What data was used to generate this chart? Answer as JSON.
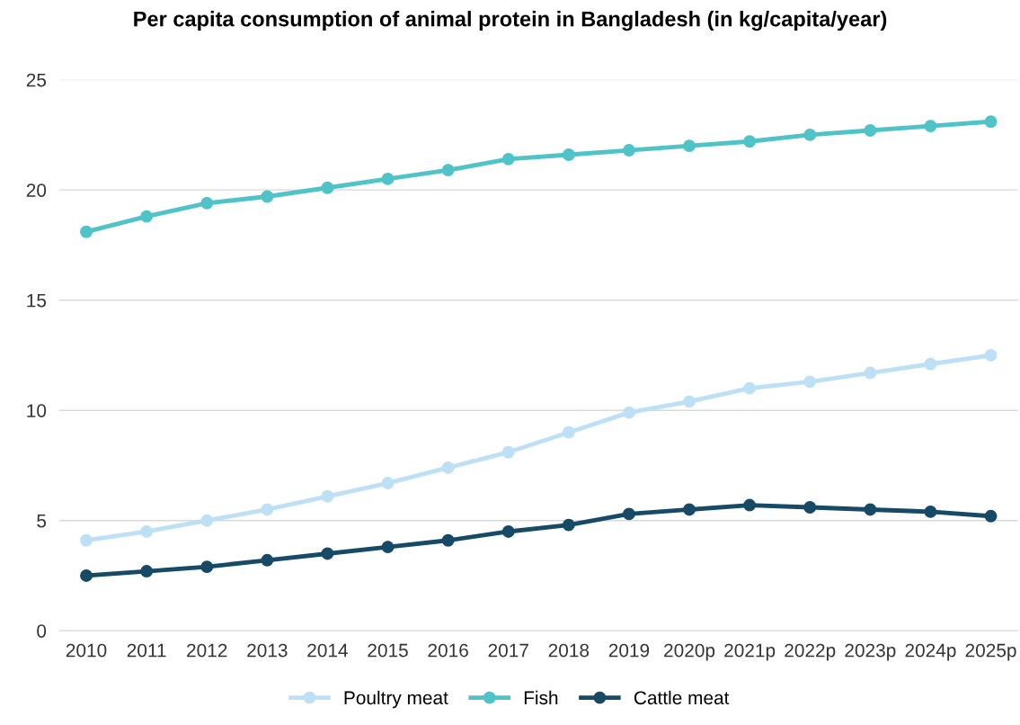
{
  "chart_data": {
    "type": "line",
    "title": "Per capita consumption of animal protein in Bangladesh (in kg/capita/year)",
    "categories": [
      "2010",
      "2011",
      "2012",
      "2013",
      "2014",
      "2015",
      "2016",
      "2017",
      "2018",
      "2019",
      "2020p",
      "2021p",
      "2022p",
      "2023p",
      "2024p",
      "2025p"
    ],
    "series": [
      {
        "name": "Poultry meat",
        "color": "#bde0f5",
        "values": [
          4.1,
          4.5,
          5.0,
          5.5,
          6.1,
          6.7,
          7.4,
          8.1,
          9.0,
          9.9,
          10.4,
          11.0,
          11.3,
          11.7,
          12.1,
          12.5
        ]
      },
      {
        "name": "Fish",
        "color": "#4fc3c8",
        "values": [
          18.1,
          18.8,
          19.4,
          19.7,
          20.1,
          20.5,
          20.9,
          21.4,
          21.6,
          21.8,
          22.0,
          22.2,
          22.5,
          22.7,
          22.9,
          23.1
        ]
      },
      {
        "name": "Cattle meat",
        "color": "#174a66",
        "values": [
          2.5,
          2.7,
          2.9,
          3.2,
          3.5,
          3.8,
          4.1,
          4.5,
          4.8,
          5.3,
          5.5,
          5.7,
          5.6,
          5.5,
          5.4,
          5.2
        ]
      }
    ],
    "ylim": [
      0,
      25
    ],
    "yticks": [
      0,
      5,
      10,
      15,
      20,
      25
    ],
    "grid": "y",
    "legend": "bottom",
    "marker": "circle",
    "line_style": "solid"
  }
}
